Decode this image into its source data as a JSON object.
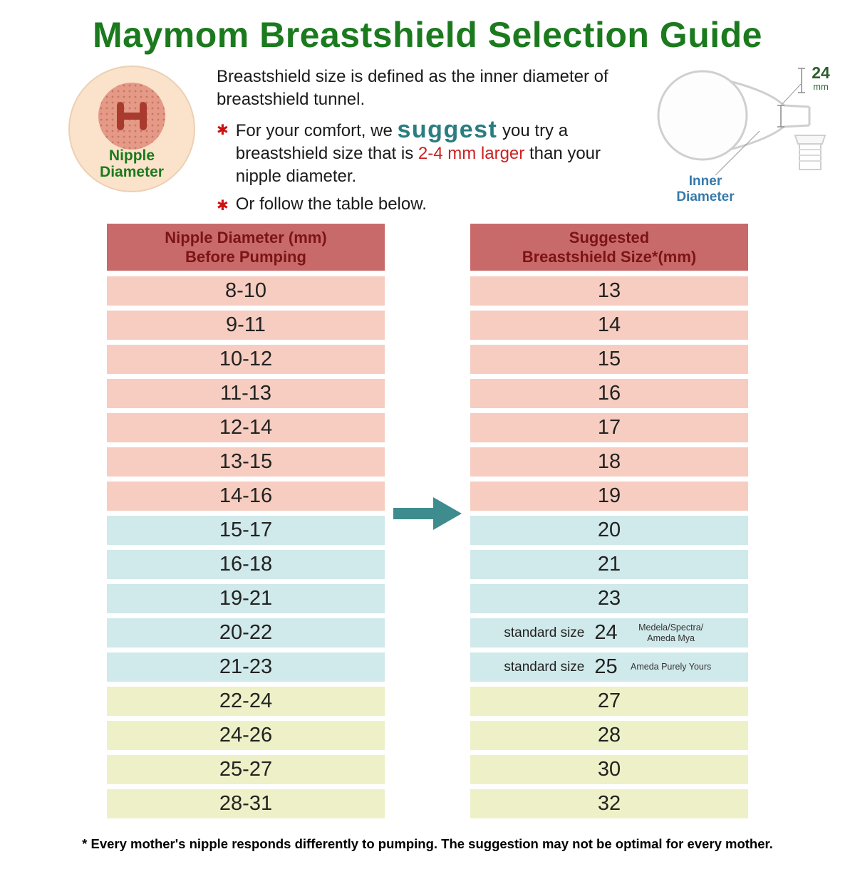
{
  "title": "Maymom Breastshield Selection Guide",
  "colors": {
    "title_green": "#1b7a1e",
    "header_bg": "#c96a6a",
    "header_text": "#7c1414",
    "row_pink": "#f6cdc0",
    "row_blue": "#d0e9ea",
    "row_yellow": "#eef1c7",
    "arrow_teal": "#3f8c8f",
    "suggest_teal": "#2a7d80",
    "highlight_red": "#cc2020",
    "star_red": "#cc1111",
    "inner_diameter_blue": "#3679a9",
    "size_label_green": "#2c5f2c"
  },
  "icons": {
    "bullet_star": "✱"
  },
  "nipple_circle": {
    "label": "Nipple Diameter"
  },
  "intro": {
    "definition": "Breastshield size is defined as the inner diameter of breastshield tunnel.",
    "bullet1": {
      "pre": "For your comfort, we",
      "suggest": "suggest",
      "mid": "you try a breastshield size that is",
      "highlight": "2-4 mm larger",
      "post": "than your nipple diameter."
    },
    "bullet2": "Or follow the table below."
  },
  "illustration": {
    "size_value": "24",
    "size_unit": "mm",
    "inner_diameter_label": "Inner Diameter"
  },
  "chart_data": {
    "type": "table",
    "title": "Maymom Breastshield Selection Guide",
    "columns": {
      "left": "Nipple Diameter (mm)\nBefore Pumping",
      "right": "Suggested\nBreastshield Size*(mm)"
    },
    "rows": [
      {
        "nipple": "8-10",
        "shield": "13",
        "group": "pink"
      },
      {
        "nipple": "9-11",
        "shield": "14",
        "group": "pink"
      },
      {
        "nipple": "10-12",
        "shield": "15",
        "group": "pink"
      },
      {
        "nipple": "11-13",
        "shield": "16",
        "group": "pink"
      },
      {
        "nipple": "12-14",
        "shield": "17",
        "group": "pink"
      },
      {
        "nipple": "13-15",
        "shield": "18",
        "group": "pink"
      },
      {
        "nipple": "14-16",
        "shield": "19",
        "group": "pink"
      },
      {
        "nipple": "15-17",
        "shield": "20",
        "group": "blue"
      },
      {
        "nipple": "16-18",
        "shield": "21",
        "group": "blue"
      },
      {
        "nipple": "19-21",
        "shield": "23",
        "group": "blue"
      },
      {
        "nipple": "20-22",
        "shield": "24",
        "prefix": "standard size",
        "note": "Medela/Spectra/\nAmeda Mya",
        "group": "blue"
      },
      {
        "nipple": "21-23",
        "shield": "25",
        "prefix": "standard size",
        "note": "Ameda Purely Yours",
        "group": "blue"
      },
      {
        "nipple": "22-24",
        "shield": "27",
        "group": "yellow"
      },
      {
        "nipple": "24-26",
        "shield": "28",
        "group": "yellow"
      },
      {
        "nipple": "25-27",
        "shield": "30",
        "group": "yellow"
      },
      {
        "nipple": "28-31",
        "shield": "32",
        "group": "yellow"
      }
    ]
  },
  "footnote": "* Every mother's nipple responds differently to pumping. The suggestion may not be optimal for every mother."
}
